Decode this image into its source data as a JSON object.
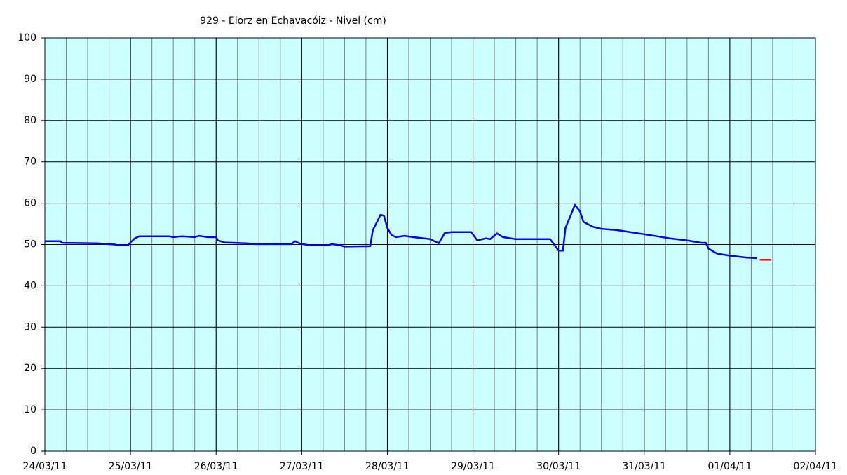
{
  "chart_data": {
    "type": "line",
    "title": "929 - Elorz en Echavacóiz - Nivel (cm)",
    "xlim": [
      0,
      9
    ],
    "xticks": [
      {
        "value": 0,
        "label": "24/03/11"
      },
      {
        "value": 1,
        "label": "25/03/11"
      },
      {
        "value": 2,
        "label": "26/03/11"
      },
      {
        "value": 3,
        "label": "27/03/11"
      },
      {
        "value": 4,
        "label": "28/03/11"
      },
      {
        "value": 5,
        "label": "29/03/11"
      },
      {
        "value": 6,
        "label": "30/03/11"
      },
      {
        "value": 7,
        "label": "31/03/11"
      },
      {
        "value": 8,
        "label": "01/04/11"
      },
      {
        "value": 9,
        "label": "02/04/11"
      }
    ],
    "minor_grid_step": 0.25,
    "ylim": [
      0,
      100
    ],
    "yticks": [
      0,
      10,
      20,
      30,
      40,
      50,
      60,
      70,
      80,
      90,
      100
    ],
    "grid": true,
    "background": "#ccffff",
    "series": [
      {
        "color": "#0000ff",
        "x": [
          0,
          0.18,
          0.2,
          0.6,
          0.82,
          0.85,
          0.97,
          1.0,
          1.05,
          1.1,
          1.45,
          1.5,
          1.6,
          1.75,
          1.8,
          1.9,
          2.0,
          2.02,
          2.1,
          2.35,
          2.45,
          2.88,
          2.92,
          2.98,
          3.1,
          3.3,
          3.35,
          3.45,
          3.5,
          3.8,
          3.83,
          3.88,
          3.92,
          3.96,
          4.0,
          4.05,
          4.1,
          4.2,
          4.3,
          4.5,
          4.6,
          4.67,
          4.75,
          4.98,
          5.05,
          5.15,
          5.2,
          5.28,
          5.35,
          5.5,
          5.9,
          6.0,
          6.05,
          6.08,
          6.15,
          6.19,
          6.25,
          6.29,
          6.4,
          6.5,
          6.68,
          7.0,
          7.3,
          7.5,
          7.67,
          7.72,
          7.75,
          7.85,
          8.0,
          8.2,
          8.32
        ],
        "values": [
          50.8,
          50.8,
          50.4,
          50.3,
          50.0,
          49.8,
          49.8,
          50.5,
          51.5,
          52.0,
          52.0,
          51.8,
          52.0,
          51.8,
          52.1,
          51.8,
          51.8,
          51.0,
          50.5,
          50.3,
          50.1,
          50.1,
          50.8,
          50.2,
          49.8,
          49.8,
          50.1,
          49.8,
          49.5,
          49.6,
          53.5,
          55.5,
          57.2,
          57.0,
          54.0,
          52.3,
          51.8,
          52.1,
          51.8,
          51.3,
          50.3,
          52.8,
          53.0,
          53.0,
          51.0,
          51.5,
          51.3,
          52.7,
          51.8,
          51.3,
          51.3,
          48.5,
          48.5,
          54.0,
          57.5,
          59.6,
          58.0,
          55.5,
          54.3,
          53.8,
          53.5,
          52.5,
          51.5,
          51.0,
          50.4,
          50.4,
          49.0,
          47.8,
          47.3,
          46.8,
          46.7
        ]
      },
      {
        "color": "#ff0000",
        "x": [
          8.35,
          8.48
        ],
        "values": [
          46.3,
          46.3
        ]
      }
    ]
  }
}
